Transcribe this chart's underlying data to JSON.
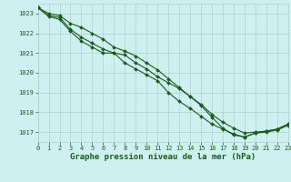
{
  "series": [
    {
      "x": [
        0,
        1,
        2,
        3,
        4,
        5,
        6,
        7,
        8,
        9,
        10,
        11,
        12,
        13,
        14,
        15,
        16,
        17,
        18,
        19,
        20,
        21,
        22,
        23
      ],
      "y": [
        1023.3,
        1022.9,
        1022.8,
        1022.2,
        1021.8,
        1021.5,
        1021.2,
        1021.0,
        1020.9,
        1020.5,
        1020.2,
        1019.8,
        1019.5,
        1019.2,
        1018.8,
        1018.4,
        1017.9,
        1017.5,
        1017.2,
        1016.95,
        1017.0,
        1017.05,
        1017.15,
        1017.4
      ]
    },
    {
      "x": [
        0,
        1,
        2,
        3,
        4,
        5,
        6,
        7,
        8,
        9,
        10,
        11,
        12,
        13,
        14,
        15,
        16,
        17,
        18,
        19,
        20,
        21,
        22,
        23
      ],
      "y": [
        1023.3,
        1022.85,
        1022.7,
        1022.1,
        1021.6,
        1021.3,
        1021.0,
        1021.0,
        1020.5,
        1020.2,
        1019.9,
        1019.6,
        1019.0,
        1018.55,
        1018.2,
        1017.8,
        1017.4,
        1017.15,
        1016.9,
        1016.75,
        1016.95,
        1017.0,
        1017.1,
        1017.35
      ]
    },
    {
      "x": [
        0,
        1,
        2,
        3,
        4,
        5,
        6,
        7,
        8,
        9,
        10,
        11,
        12,
        13,
        14,
        15,
        16,
        17,
        18,
        19,
        20,
        21,
        22,
        23
      ],
      "y": [
        1023.3,
        1023.0,
        1022.9,
        1022.5,
        1022.3,
        1022.0,
        1021.7,
        1021.3,
        1021.1,
        1020.85,
        1020.5,
        1020.15,
        1019.7,
        1019.25,
        1018.8,
        1018.35,
        1017.75,
        1017.2,
        1016.85,
        1016.75,
        1016.95,
        1017.05,
        1017.15,
        1017.4
      ]
    }
  ],
  "line_color": "#1a5c1a",
  "marker": "D",
  "marker_size": 2.0,
  "linewidth": 0.8,
  "xlim": [
    0,
    23
  ],
  "ylim": [
    1016.5,
    1023.5
  ],
  "xticks": [
    0,
    1,
    2,
    3,
    4,
    5,
    6,
    7,
    8,
    9,
    10,
    11,
    12,
    13,
    14,
    15,
    16,
    17,
    18,
    19,
    20,
    21,
    22,
    23
  ],
  "yticks": [
    1017,
    1018,
    1019,
    1020,
    1021,
    1022,
    1023
  ],
  "xlabel": "Graphe pression niveau de la mer (hPa)",
  "background_color": "#cff0f0",
  "grid_color": "#b0d0d0",
  "tick_fontsize": 5.0,
  "label_fontsize": 6.5
}
